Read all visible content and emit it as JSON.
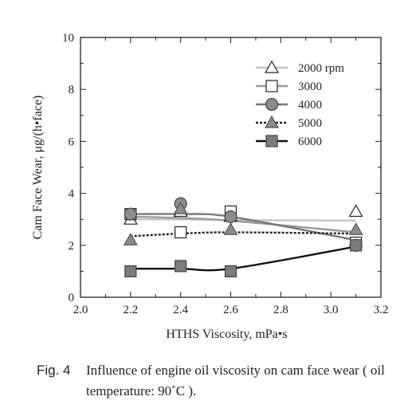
{
  "chart_data": {
    "type": "line",
    "title": "",
    "xlabel": "HTHS Viscosity, mPa•s",
    "ylabel": "Cam Face Wear, μg/(h•face)",
    "xlim": [
      2.0,
      3.2
    ],
    "ylim": [
      0,
      10
    ],
    "x_ticks": [
      "2.0",
      "2.2",
      "2.4",
      "2.6",
      "2.8",
      "3.0",
      "3.2"
    ],
    "y_ticks": [
      "0",
      "2",
      "4",
      "6",
      "8",
      "10"
    ],
    "legend_position": "top-right",
    "grid": false,
    "series": [
      {
        "name": "2000 rpm",
        "marker": "triangle-open",
        "line_color": "#c4c4c4",
        "line_style": "solid",
        "x": [
          2.2,
          2.4,
          2.6,
          3.1
        ],
        "y": [
          3.0,
          3.3,
          3.1,
          3.3
        ],
        "curve_y": [
          3.0,
          3.0,
          2.97,
          2.95
        ]
      },
      {
        "name": "3000",
        "marker": "square-open",
        "line_color": "#9a9a9a",
        "line_style": "solid",
        "x": [
          2.2,
          2.4,
          2.6,
          3.1
        ],
        "y": [
          3.2,
          2.5,
          3.3,
          2.1
        ],
        "curve_y": [
          3.1,
          3.05,
          2.95,
          2.5
        ]
      },
      {
        "name": "4000",
        "marker": "circle",
        "line_color": "#777777",
        "line_style": "solid",
        "x": [
          2.2,
          2.4,
          2.6,
          3.1
        ],
        "y": [
          3.2,
          3.6,
          3.1,
          2.0
        ],
        "curve_y": [
          3.2,
          3.2,
          3.1,
          2.2
        ]
      },
      {
        "name": "5000",
        "marker": "triangle",
        "line_color": "#222222",
        "line_style": "dashed",
        "x": [
          2.2,
          2.4,
          2.6,
          3.1
        ],
        "y": [
          2.2,
          3.4,
          2.6,
          2.6
        ],
        "curve_y": [
          2.35,
          2.45,
          2.5,
          2.45
        ]
      },
      {
        "name": "6000",
        "marker": "square",
        "line_color": "#111111",
        "line_style": "solid",
        "x": [
          2.2,
          2.4,
          2.6,
          3.1
        ],
        "y": [
          1.0,
          1.2,
          1.0,
          2.0
        ],
        "curve_y": [
          1.1,
          1.1,
          1.1,
          1.95
        ]
      }
    ]
  },
  "caption": {
    "label": "Fig. 4",
    "text": "Influence of engine oil viscosity on cam face wear ( oil temperature: 90˚C )."
  }
}
